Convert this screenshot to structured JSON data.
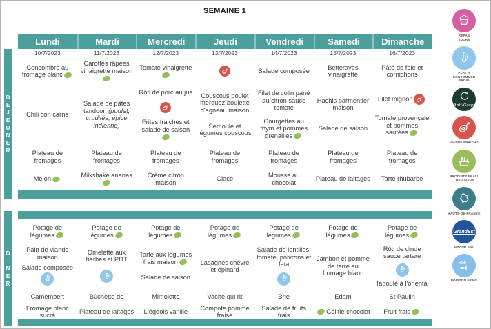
{
  "title": "SEMAINE 1",
  "colors": {
    "teal": "#4B9F9D",
    "seasonal_dot_green": "#96BE5B",
    "fresh_meat_red": "#D9534F",
    "cold_dish_blue": "#8FC6E9"
  },
  "days": [
    {
      "label": "Lundi",
      "date": "10/7/2023"
    },
    {
      "label": "Mardi",
      "date": "11/7/2023"
    },
    {
      "label": "Mercredi",
      "date": "12/7/2023"
    },
    {
      "label": "Jeudi",
      "date": "13/7/2023"
    },
    {
      "label": "Vendredi",
      "date": "14/7/2023"
    },
    {
      "label": "Samedi",
      "date": "15/7/2023"
    },
    {
      "label": "Dimanche",
      "date": "16/7/2023"
    }
  ],
  "sections": [
    {
      "id": "dejeuner",
      "label": "DEJEUNER",
      "rows": [
        {
          "cells": [
            [
              {
                "text": "Concombre au fromage blanc",
                "dot": "right"
              }
            ],
            [
              {
                "text": "Carottes râpées vinaigrette maison",
                "dot": "right"
              }
            ],
            [
              {
                "text": "Tomate vinaigrette",
                "dot": "right"
              }
            ],
            [
              {
                "icon": "meat"
              }
            ],
            [
              {
                "text": "Salade composée"
              }
            ],
            [
              {
                "text": "Betteraves vinaigrette"
              }
            ],
            [
              {
                "text": "Pâté de foie et cornichons"
              }
            ]
          ]
        },
        {
          "cells": [
            [
              {
                "text": "Chili con carne"
              }
            ],
            [
              {
                "text": "Salade de pâtes tandoori",
                "italic": "(poulet, crudités, épice indienne)"
              }
            ],
            [
              {
                "text": "Rôti de porc au jus"
              },
              {
                "icon": "meat"
              },
              {
                "text": "Frites fraiches et salade de saison",
                "dot": "right"
              }
            ],
            [
              {
                "text": "Couscous poulet merguez boulette d'agneau maison"
              },
              {
                "text": "Semoule et légumes couscous"
              }
            ],
            [
              {
                "text": "Filet de colin pané au citron sauce tomate"
              },
              {
                "text": "Courgettes au thym et pommes grenailles",
                "dot": "right"
              }
            ],
            [
              {
                "text": "Hachis parmentier maison"
              },
              {
                "text": "Salade de saison"
              }
            ],
            [
              {
                "text": "Filet mignon",
                "icon_right": "meat"
              },
              {
                "text": "Tomate provençale et pommes sautées",
                "dot": "right"
              }
            ]
          ]
        },
        {
          "cells": [
            [
              {
                "text": "Plateau de fromages"
              }
            ],
            [
              {
                "text": "Plateau de fromages"
              }
            ],
            [
              {
                "text": "Plateau de fromages"
              }
            ],
            [
              {
                "text": "Plateau de fromages"
              }
            ],
            [
              {
                "text": "Plateau de fromages"
              }
            ],
            [
              {
                "text": "Plateau de fromages"
              }
            ],
            [
              {
                "text": "Plateau de fromages"
              }
            ]
          ]
        },
        {
          "cells": [
            [
              {
                "text": "Melon",
                "dot": "right"
              }
            ],
            [
              {
                "text": "Milkshake ananas",
                "dot": "right"
              }
            ],
            [
              {
                "text": "Crème citron maison"
              }
            ],
            [
              {
                "text": "Glace"
              }
            ],
            [
              {
                "text": "Mousse au chocolat"
              }
            ],
            [
              {
                "text": "Plateau de laitages"
              }
            ],
            [
              {
                "text": "Tarte rhubarbe"
              }
            ]
          ]
        }
      ]
    },
    {
      "id": "diner",
      "label": "DINER",
      "rows": [
        {
          "cells": [
            [
              {
                "text": "Potage de légumes",
                "dot": "right"
              }
            ],
            [
              {
                "text": "Potage de légumes",
                "dot": "right"
              }
            ],
            [
              {
                "text": "Potage de légumes",
                "dot": "right"
              }
            ],
            [
              {
                "text": "Potage de légumes",
                "dot": "right"
              }
            ],
            [
              {
                "text": "Potage de légumes",
                "dot": "right"
              }
            ],
            [
              {
                "text": "Potage de légumes",
                "dot": "right"
              }
            ],
            [
              {
                "text": "Potage de légumes",
                "dot": "right"
              }
            ]
          ]
        },
        {
          "cells": [
            [
              {
                "text": "Pain de viande maison"
              },
              {
                "text": "Salade composée",
                "icon_right": "cold"
              }
            ],
            [
              {
                "text": "Omelette aux herbes et PDT"
              },
              {
                "icon": "cold"
              }
            ],
            [
              {
                "text": "Tarte aux légumes frais maison",
                "dot": "right"
              },
              {
                "text": "Salade de saison"
              }
            ],
            [
              {
                "text": "Lasagnes chèvre et épinard"
              }
            ],
            [
              {
                "text": "Salade de lentilles, tomate, poivrons et feta"
              },
              {
                "icon": "cold"
              }
            ],
            [
              {
                "text": "Jambon et pomme de terre au fromage blanc"
              }
            ],
            [
              {
                "text": "Rôti de dinde sauce tartare"
              },
              {
                "icon": "cold"
              },
              {
                "text": "Taboulé à l'oriental"
              }
            ]
          ]
        },
        {
          "cells": [
            [
              {
                "text": "Camembert"
              }
            ],
            [
              {
                "text": "Bûchette de"
              }
            ],
            [
              {
                "text": "Mimolette"
              }
            ],
            [
              {
                "text": "Vache qui rit"
              }
            ],
            [
              {
                "text": "Brie"
              }
            ],
            [
              {
                "text": "Edam"
              }
            ],
            [
              {
                "text": "St Paulin"
              }
            ]
          ]
        },
        {
          "cells": [
            [
              {
                "text": "Fromage blanc sucré"
              }
            ],
            [
              {
                "text": "Plateau de laitages"
              }
            ],
            [
              {
                "text": "Liégeois vanille"
              }
            ],
            [
              {
                "text": "Compote pomme fraise"
              }
            ],
            [
              {
                "text": "Salade de fruits frais"
              }
            ],
            [
              {
                "text": "Gélifié chocolat",
                "dot": "left"
              }
            ],
            [
              {
                "text": "Fruit frais",
                "dot": "right"
              }
            ]
          ]
        }
      ]
    }
  ],
  "legend": [
    {
      "id": "repas-sucre",
      "color": "#D6609F",
      "label": "REPAS\nSUCRE"
    },
    {
      "id": "plat-froid",
      "color": "#8FC6E9",
      "label": "PLAT A\nCONSOMMER\nFROID"
    },
    {
      "id": "anti-gaspi",
      "color": "#1C3A2E",
      "label": "",
      "inner_text": "Anti-Gaspi"
    },
    {
      "id": "viande-fraiche",
      "color": "#DA544D",
      "label": "VIANDE FRAICHE"
    },
    {
      "id": "produits-frais",
      "color": "#96BE5B",
      "label": "PRODUITS FRAIS\n/ DE SAISON"
    },
    {
      "id": "hauts-de-france",
      "color": "#3E7E8C",
      "label": "HAUTS-DE-FRANCE"
    },
    {
      "id": "grand-est",
      "color": "#24549C",
      "label": "GRAND EST",
      "inner_text": "GrandEst"
    },
    {
      "id": "poisson-frais",
      "color": "#85BEE8",
      "label": "POISSON FRAIS"
    }
  ]
}
